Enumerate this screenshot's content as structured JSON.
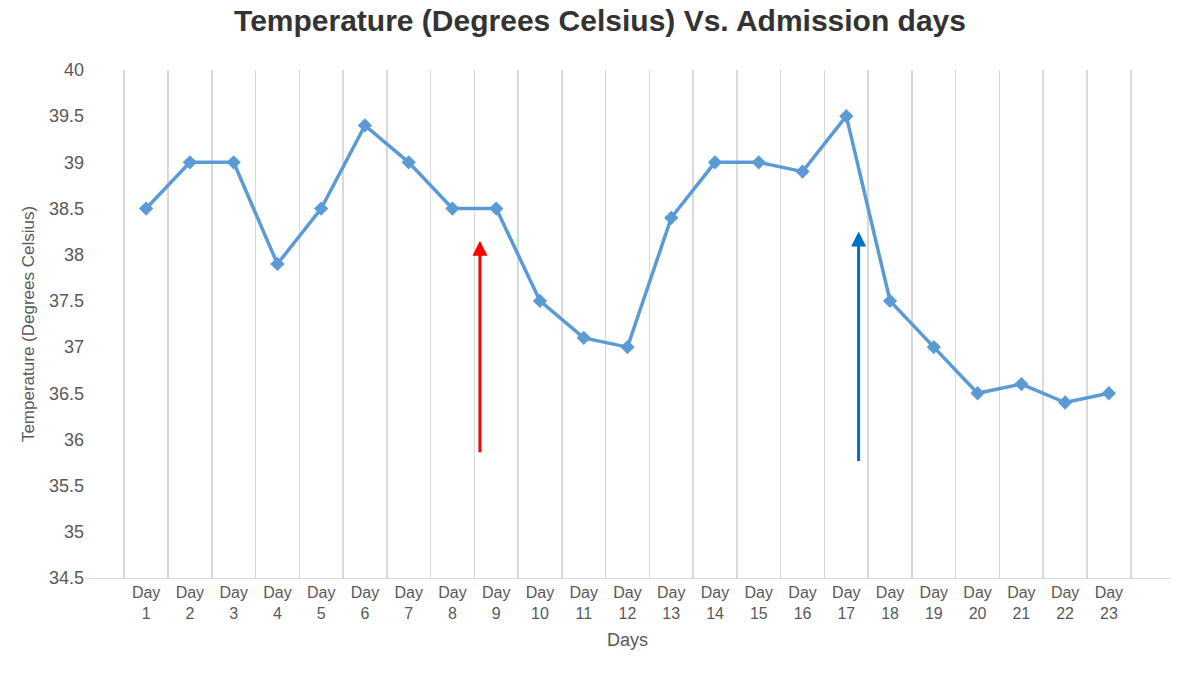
{
  "chart_data": {
    "type": "line",
    "title": "Temperature (Degrees Celsius) Vs. Admission days",
    "x_label": "Days",
    "y_label": "Temperature (Degrees Celsius)",
    "categories": [
      "Day 1",
      "Day 2",
      "Day 3",
      "Day 4",
      "Day 5",
      "Day 6",
      "Day 7",
      "Day 8",
      "Day 9",
      "Day 10",
      "Day 11",
      "Day 12",
      "Day 13",
      "Day 14",
      "Day 15",
      "Day 16",
      "Day 17",
      "Day 18",
      "Day 19",
      "Day 20",
      "Day 21",
      "Day 22",
      "Day 23"
    ],
    "values": [
      38.5,
      39,
      39,
      37.9,
      38.5,
      39.4,
      39,
      38.5,
      38.5,
      37.5,
      37.1,
      37,
      38.4,
      39,
      39,
      38.9,
      39.5,
      37.5,
      37,
      36.5,
      36.6,
      36.4,
      36.5
    ],
    "color": "#5b9bd5",
    "marker": "diamond",
    "ylim": [
      34.5,
      40
    ],
    "yticks": [
      34.5,
      35,
      35.5,
      36,
      36.5,
      37,
      37.5,
      38,
      38.5,
      39,
      39.5,
      40
    ],
    "grid": true
  }
}
